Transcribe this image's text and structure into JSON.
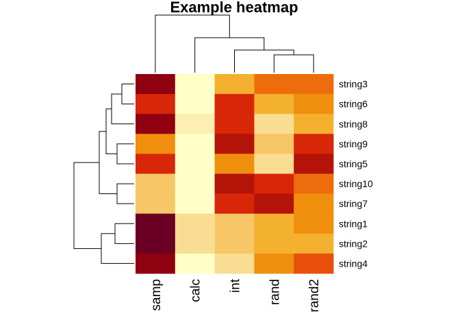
{
  "chart_data": {
    "type": "heatmap",
    "title": "Example heatmap",
    "xlabel": "",
    "ylabel": "",
    "columns": [
      "samp",
      "calc",
      "int",
      "rand",
      "rand2"
    ],
    "rows": [
      "string3",
      "string6",
      "string8",
      "string9",
      "string5",
      "string10",
      "string7",
      "string1",
      "string2",
      "string4"
    ],
    "palette": [
      "#6a0023",
      "#8f0010",
      "#b41308",
      "#d82608",
      "#e74f0a",
      "#ed6d0c",
      "#f08f0d",
      "#f4b12f",
      "#f6c667",
      "#f9dd92",
      "#fdeeb2",
      "#ffffc8"
    ],
    "values": [
      [
        1,
        11,
        7,
        5,
        5
      ],
      [
        3,
        11,
        3,
        7,
        6
      ],
      [
        1,
        10,
        3,
        9,
        7
      ],
      [
        6,
        11,
        2,
        8,
        3
      ],
      [
        3,
        11,
        6,
        9,
        2
      ],
      [
        8,
        11,
        2,
        3,
        5
      ],
      [
        8,
        11,
        3,
        2,
        6
      ],
      [
        0,
        9,
        8,
        7,
        6
      ],
      [
        0,
        9,
        8,
        7,
        7
      ],
      [
        1,
        11,
        9,
        6,
        4
      ]
    ],
    "legend": "none"
  }
}
